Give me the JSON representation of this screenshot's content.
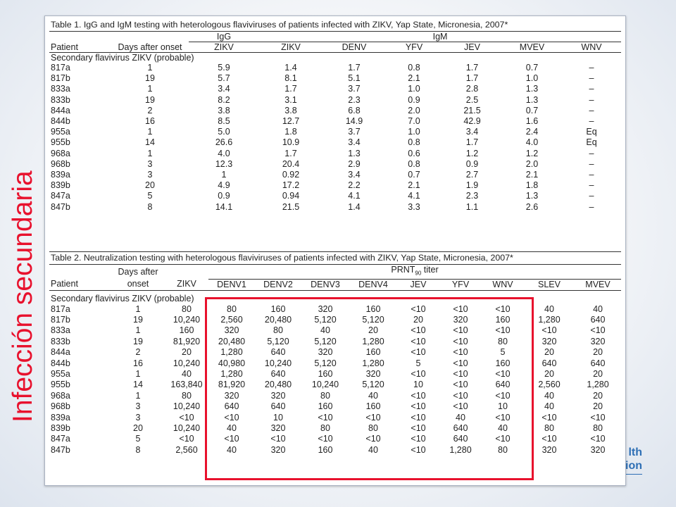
{
  "side_title": "Infección secundaria",
  "logo_fragment": {
    "line1": "lth",
    "line2": "ion"
  },
  "table1": {
    "caption": "Table 1. IgG and IgM testing with heterologous flaviviruses of patients infected with ZIKV, Yap State, Micronesia, 2007*",
    "group_igg": "IgG",
    "group_igm": "IgM",
    "columns": [
      "Patient",
      "Days after onset",
      "ZIKV",
      "ZIKV",
      "DENV",
      "YFV",
      "JEV",
      "MVEV",
      "WNV"
    ],
    "section_label": "Secondary flavivirus ZIKV (probable)",
    "rows": [
      [
        "817a",
        "1",
        "5.9",
        "1.4",
        "1.7",
        "0.8",
        "1.7",
        "0.7",
        "–"
      ],
      [
        "817b",
        "19",
        "5.7",
        "8.1",
        "5.1",
        "2.1",
        "1.7",
        "1.0",
        "–"
      ],
      [
        "833a",
        "1",
        "3.4",
        "1.7",
        "3.7",
        "1.0",
        "2.8",
        "1.3",
        "–"
      ],
      [
        "833b",
        "19",
        "8.2",
        "3.1",
        "2.3",
        "0.9",
        "2.5",
        "1.3",
        "–"
      ],
      [
        "844a",
        "2",
        "3.8",
        "3.8",
        "6.8",
        "2.0",
        "21.5",
        "0.7",
        "–"
      ],
      [
        "844b",
        "16",
        "8.5",
        "12.7",
        "14.9",
        "7.0",
        "42.9",
        "1.6",
        "–"
      ],
      [
        "955a",
        "1",
        "5.0",
        "1.8",
        "3.7",
        "1.0",
        "3.4",
        "2.4",
        "Eq"
      ],
      [
        "955b",
        "14",
        "26.6",
        "10.9",
        "3.4",
        "0.8",
        "1.7",
        "4.0",
        "Eq"
      ],
      [
        "968a",
        "1",
        "4.0",
        "1.7",
        "1.3",
        "0.6",
        "1.2",
        "1.2",
        "–"
      ],
      [
        "968b",
        "3",
        "12.3",
        "20.4",
        "2.9",
        "0.8",
        "0.9",
        "2.0",
        "–"
      ],
      [
        "839a",
        "3",
        "1",
        "0.92",
        "3.4",
        "0.7",
        "2.7",
        "2.1",
        "–"
      ],
      [
        "839b",
        "20",
        "4.9",
        "17.2",
        "2.2",
        "2.1",
        "1.9",
        "1.8",
        "–"
      ],
      [
        "847a",
        "5",
        "0.9",
        "0.94",
        "4.1",
        "4.1",
        "2.3",
        "1.3",
        "–"
      ],
      [
        "847b",
        "8",
        "14.1",
        "21.5",
        "1.4",
        "3.3",
        "1.1",
        "2.6",
        "–"
      ]
    ]
  },
  "table2": {
    "caption": "Table 2. Neutralization testing with heterologous flaviviruses of patients infected with ZIKV, Yap State, Micronesia, 2007*",
    "patient_label": "Patient",
    "days_line1": "Days after",
    "days_line2": "onset",
    "prnt_label": "PRNT",
    "prnt_sub": "90",
    "prnt_suffix": " titer",
    "columns": [
      "ZIKV",
      "DENV1",
      "DENV2",
      "DENV3",
      "DENV4",
      "JEV",
      "YFV",
      "WNV",
      "SLEV",
      "MVEV"
    ],
    "section_label": "Secondary flavivirus ZIKV (probable)",
    "rows": [
      [
        "817a",
        "1",
        "80",
        "80",
        "160",
        "320",
        "160",
        "<10",
        "<10",
        "<10",
        "40",
        "40"
      ],
      [
        "817b",
        "19",
        "10,240",
        "2,560",
        "20,480",
        "5,120",
        "5,120",
        "20",
        "320",
        "160",
        "1,280",
        "640"
      ],
      [
        "833a",
        "1",
        "160",
        "320",
        "80",
        "40",
        "20",
        "<10",
        "<10",
        "<10",
        "<10",
        "<10"
      ],
      [
        "833b",
        "19",
        "81,920",
        "20,480",
        "5,120",
        "5,120",
        "1,280",
        "<10",
        "<10",
        "80",
        "320",
        "320"
      ],
      [
        "844a",
        "2",
        "20",
        "1,280",
        "640",
        "320",
        "160",
        "<10",
        "<10",
        "5",
        "20",
        "20"
      ],
      [
        "844b",
        "16",
        "10,240",
        "40,980",
        "10,240",
        "5,120",
        "1,280",
        "5",
        "<10",
        "160",
        "640",
        "640"
      ],
      [
        "955a",
        "1",
        "40",
        "1,280",
        "640",
        "160",
        "320",
        "<10",
        "<10",
        "<10",
        "20",
        "20"
      ],
      [
        "955b",
        "14",
        "163,840",
        "81,920",
        "20,480",
        "10,240",
        "5,120",
        "10",
        "<10",
        "640",
        "2,560",
        "1,280"
      ],
      [
        "968a",
        "1",
        "80",
        "320",
        "320",
        "80",
        "40",
        "<10",
        "<10",
        "<10",
        "40",
        "20"
      ],
      [
        "968b",
        "3",
        "10,240",
        "640",
        "640",
        "160",
        "160",
        "<10",
        "<10",
        "10",
        "40",
        "20"
      ],
      [
        "839a",
        "3",
        "<10",
        "<10",
        "10",
        "<10",
        "<10",
        "<10",
        "40",
        "<10",
        "<10",
        "<10"
      ],
      [
        "839b",
        "20",
        "10,240",
        "40",
        "320",
        "80",
        "80",
        "<10",
        "640",
        "40",
        "80",
        "80"
      ],
      [
        "847a",
        "5",
        "<10",
        "<10",
        "<10",
        "<10",
        "<10",
        "<10",
        "640",
        "<10",
        "<10",
        "<10"
      ],
      [
        "847b",
        "8",
        "2,560",
        "40",
        "320",
        "160",
        "40",
        "<10",
        "1,280",
        "80",
        "320",
        "320"
      ]
    ]
  },
  "colors": {
    "highlight": "#e8112d",
    "side_title": "#e8112d",
    "logo": "#2e6fb5"
  }
}
